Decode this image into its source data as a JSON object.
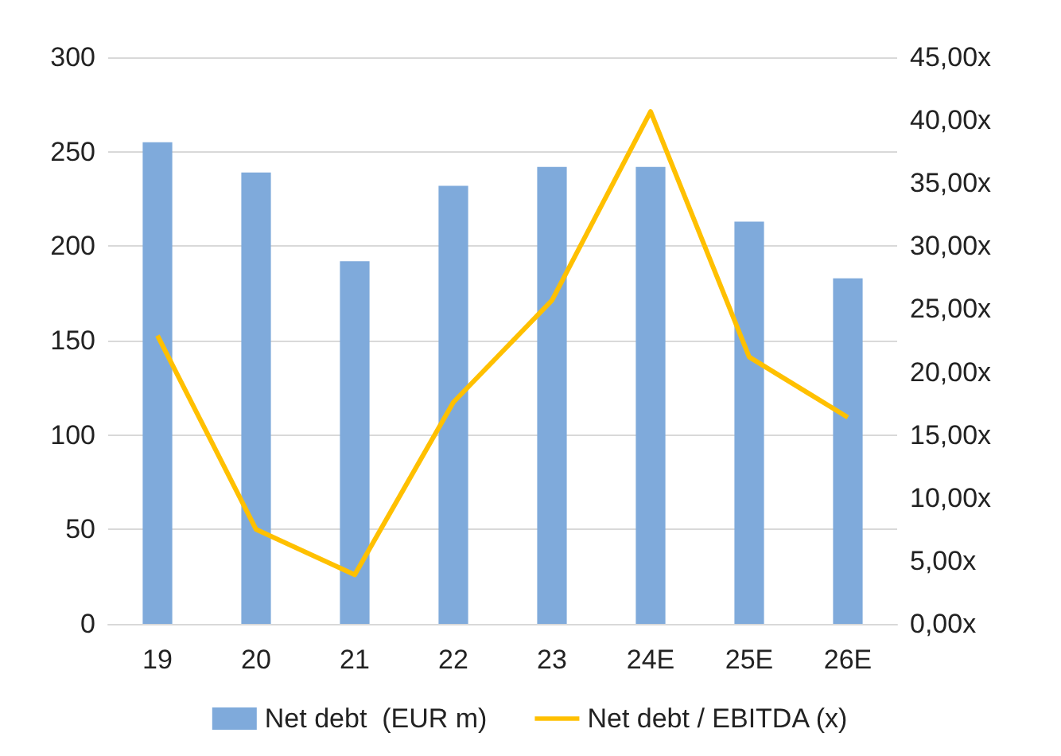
{
  "chart_data": {
    "type": "bar",
    "categories": [
      "19",
      "20",
      "21",
      "22",
      "23",
      "24E",
      "25E",
      "26E"
    ],
    "series": [
      {
        "name": "Net debt  (EUR m)",
        "color": "#7faadb",
        "values": [
          255,
          239,
          192,
          232,
          242,
          242,
          213,
          183
        ]
      },
      {
        "name": "Net debt / EBITDA (x)",
        "type": "line",
        "axis": "y2",
        "color": "#ffc000",
        "values": [
          22.9,
          7.5,
          3.9,
          17.6,
          25.7,
          40.7,
          21.2,
          16.4
        ]
      }
    ],
    "ylim": [
      0,
      300
    ],
    "yticks": [
      0,
      50,
      100,
      150,
      200,
      250,
      300
    ],
    "y2lim": [
      0,
      45
    ],
    "y2ticks": [
      {
        "value": 0,
        "label": "0,00x"
      },
      {
        "value": 5,
        "label": "5,00x"
      },
      {
        "value": 10,
        "label": "10,00x"
      },
      {
        "value": 15,
        "label": "15,00x"
      },
      {
        "value": 20,
        "label": "20,00x"
      },
      {
        "value": 25,
        "label": "25,00x"
      },
      {
        "value": 30,
        "label": "30,00x"
      },
      {
        "value": 35,
        "label": "35,00x"
      },
      {
        "value": 40,
        "label": "40,00x"
      },
      {
        "value": 45,
        "label": "45,00x"
      }
    ],
    "grid": "y",
    "legend": "bottom",
    "marker": "none"
  }
}
